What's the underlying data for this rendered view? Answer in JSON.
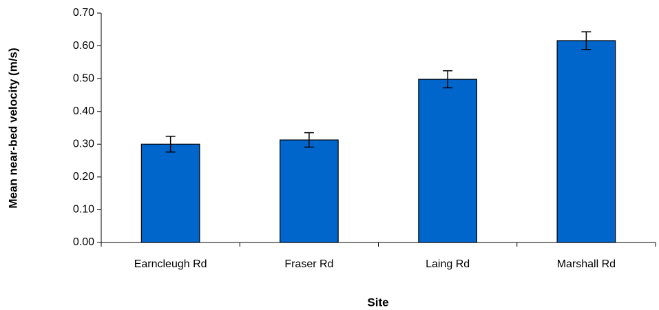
{
  "chart_data": {
    "type": "bar",
    "x_label": "Site",
    "y_label": "Mean near-bed velocity (m/s)",
    "categories": [
      "Earncleugh Rd",
      "Fraser Rd",
      "Laing Rd",
      "Marshall Rd"
    ],
    "values": [
      0.3,
      0.313,
      0.498,
      0.616
    ],
    "errors": [
      0.024,
      0.022,
      0.026,
      0.027
    ],
    "color": "#0066cc",
    "ylim": [
      0,
      0.7
    ],
    "yticks": [
      {
        "value": 0,
        "label": "0.00"
      },
      {
        "value": 0.1,
        "label": "0.10"
      },
      {
        "value": 0.2,
        "label": "0.20"
      },
      {
        "value": 0.3,
        "label": "0.30"
      },
      {
        "value": 0.4,
        "label": "0.40"
      },
      {
        "value": 0.5,
        "label": "0.50"
      },
      {
        "value": 0.6,
        "label": "0.60"
      },
      {
        "value": 0.7,
        "label": "0.70"
      }
    ],
    "grid": false
  }
}
